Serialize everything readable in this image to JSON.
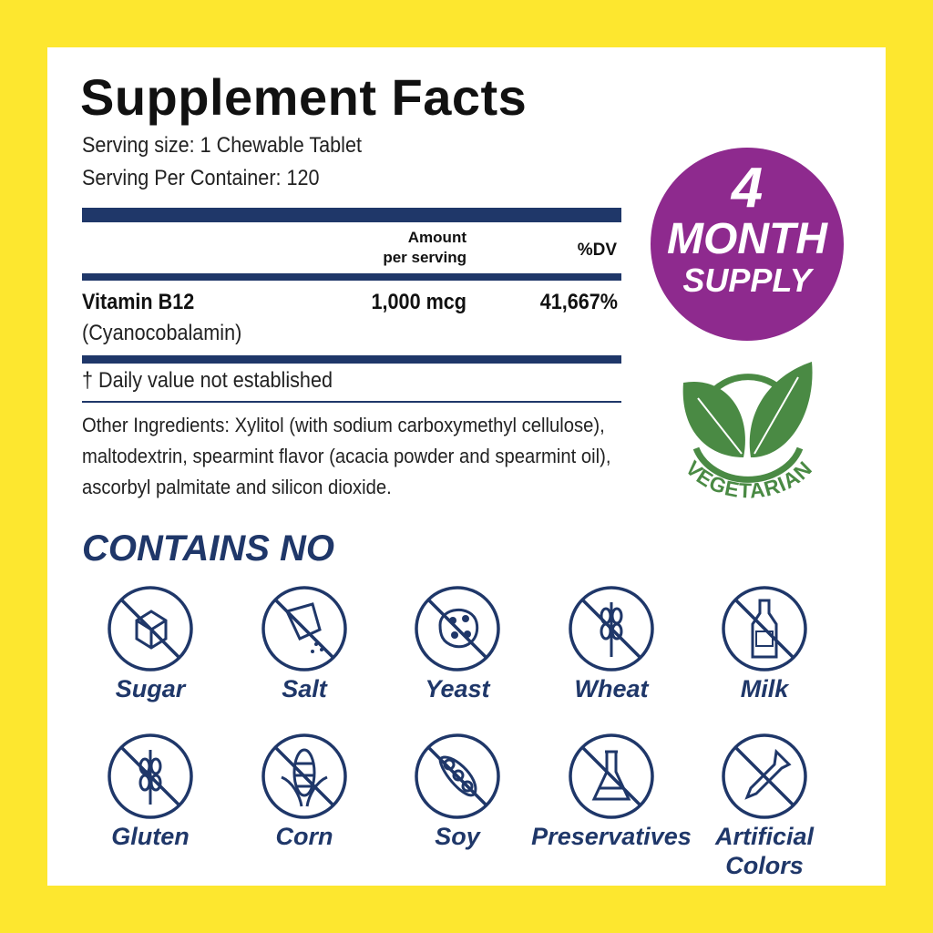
{
  "title": "Supplement Facts",
  "serving_size": "Serving size: 1 Chewable Tablet",
  "servings_per_container": "Serving Per Container: 120",
  "table": {
    "header_amount_line1": "Amount",
    "header_amount_line2": "per serving",
    "header_dv": "%DV",
    "rows": [
      {
        "name": "Vitamin B12",
        "subname": "(Cyanocobalamin)",
        "amount": "1,000 mcg",
        "dv": "41,667%"
      }
    ],
    "footnote": "† Daily value not established"
  },
  "other_ingredients": "Other Ingredients: Xylitol (with sodium carboxymethyl cellulose), maltodextrin, spearmint flavor (acacia powder and spearmint oil), ascorbyl palmitate and silicon dioxide.",
  "badge": {
    "number": "4",
    "line1": "MONTH",
    "line2": "SUPPLY"
  },
  "vegetarian_logo": "VEGETARIAN",
  "contains_no": {
    "heading": "CONTAINS NO",
    "items": [
      {
        "label": "Sugar",
        "icon": "sugar-cube-icon"
      },
      {
        "label": "Salt",
        "icon": "salt-shaker-icon"
      },
      {
        "label": "Yeast",
        "icon": "yeast-icon"
      },
      {
        "label": "Wheat",
        "icon": "wheat-icon"
      },
      {
        "label": "Milk",
        "icon": "milk-bottle-icon"
      },
      {
        "label": "Gluten",
        "icon": "gluten-icon"
      },
      {
        "label": "Corn",
        "icon": "corn-icon"
      },
      {
        "label": "Soy",
        "icon": "soy-icon"
      },
      {
        "label": "Preservatives",
        "icon": "flask-icon"
      },
      {
        "label": "Artificial Colors",
        "icon": "dropper-icon"
      }
    ]
  },
  "colors": {
    "border": "#fde72f",
    "navy": "#1f3769",
    "purple": "#8e2a8e",
    "green": "#4a8a44"
  }
}
